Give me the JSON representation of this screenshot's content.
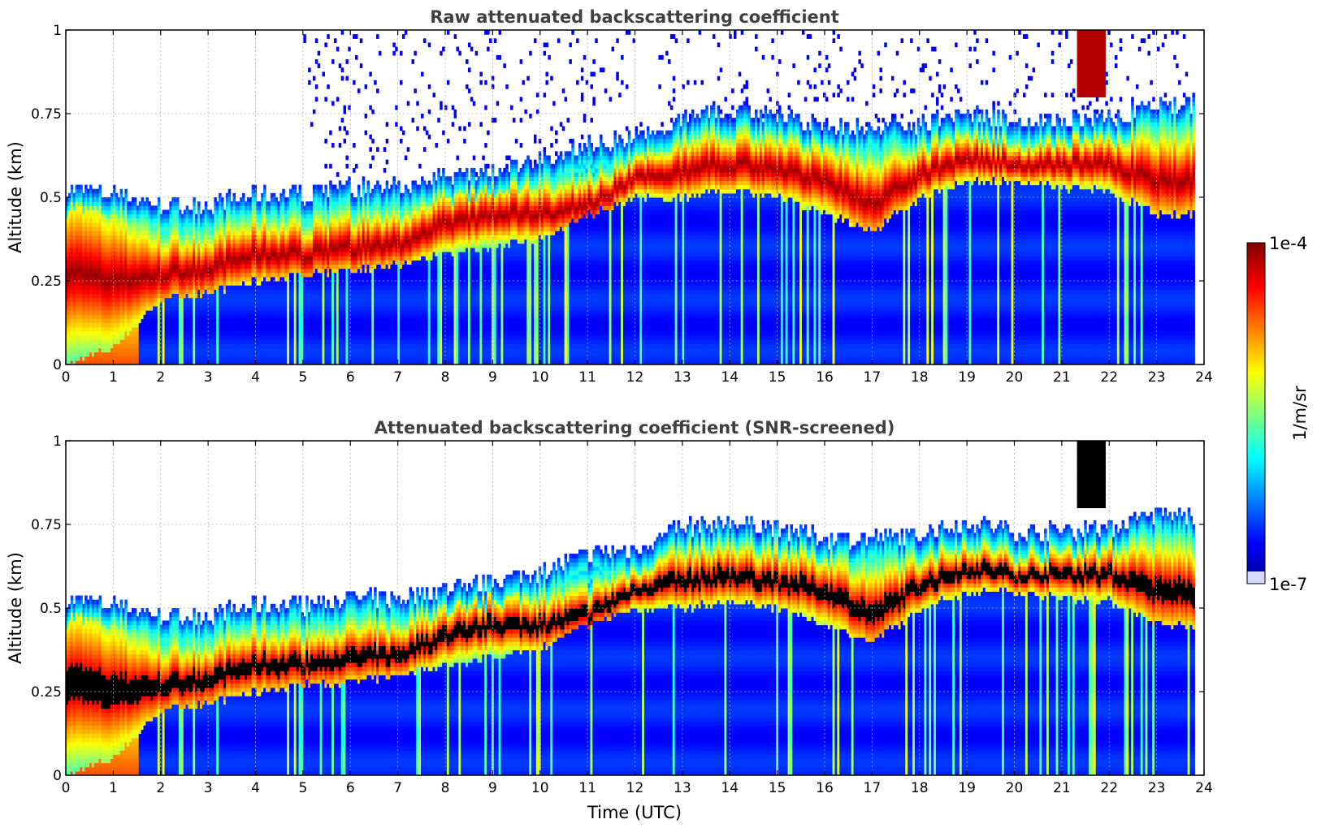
{
  "colors": {
    "background": "#ffffff",
    "colormap": "jet",
    "screened_saturation": "#000000",
    "grid": "#b0b0b0"
  },
  "colorbar": {
    "max_label": "1e-4",
    "min_label": "1e-7",
    "unit_label": "1/m/sr",
    "min_value": 1e-07,
    "max_value": 0.0001,
    "scale": "log"
  },
  "chart_data": [
    {
      "type": "heatmap",
      "title": "Raw attenuated backscattering coefficient",
      "xlabel": "",
      "ylabel": "Altitude (km)",
      "xlim": [
        0,
        24
      ],
      "ylim": [
        0,
        1
      ],
      "x_ticks": [
        "0",
        "1",
        "2",
        "3",
        "4",
        "5",
        "6",
        "7",
        "8",
        "9",
        "10",
        "11",
        "12",
        "13",
        "14",
        "15",
        "16",
        "17",
        "18",
        "19",
        "20",
        "21",
        "22",
        "23",
        "24"
      ],
      "y_ticks": [
        "0",
        "0.25",
        "0.5",
        "0.75",
        "1"
      ],
      "grid": true,
      "colorscale": "log",
      "data_end_time": 23.8,
      "layer_top_km": [
        0.47,
        0.45,
        0.42,
        0.42,
        0.45,
        0.45,
        0.47,
        0.47,
        0.5,
        0.52,
        0.55,
        0.6,
        0.62,
        0.68,
        0.7,
        0.68,
        0.65,
        0.65,
        0.66,
        0.7,
        0.67,
        0.67,
        0.68,
        0.72,
        0.72
      ],
      "layer_peak_km": [
        0.28,
        0.25,
        0.27,
        0.29,
        0.33,
        0.33,
        0.35,
        0.36,
        0.42,
        0.45,
        0.45,
        0.48,
        0.56,
        0.58,
        0.6,
        0.58,
        0.55,
        0.48,
        0.57,
        0.62,
        0.6,
        0.6,
        0.6,
        0.55,
        0.55
      ],
      "layer_bottom_km": [
        0.0,
        0.05,
        0.2,
        0.22,
        0.25,
        0.27,
        0.28,
        0.3,
        0.33,
        0.35,
        0.38,
        0.45,
        0.5,
        0.5,
        0.52,
        0.5,
        0.45,
        0.4,
        0.5,
        0.55,
        0.55,
        0.53,
        0.52,
        0.45,
        0.45
      ],
      "upper_cloud": {
        "time_start": 21.3,
        "time_end": 21.9,
        "altitude_bottom_km": 0.8,
        "altitude_top_km": 1.0
      }
    },
    {
      "type": "heatmap",
      "title": "Attenuated backscattering coefficient (SNR-screened)",
      "xlabel": "Time (UTC)",
      "ylabel": "Altitude (km)",
      "xlim": [
        0,
        24
      ],
      "ylim": [
        0,
        1
      ],
      "x_ticks": [
        "0",
        "1",
        "2",
        "3",
        "4",
        "5",
        "6",
        "7",
        "8",
        "9",
        "10",
        "11",
        "12",
        "13",
        "14",
        "15",
        "16",
        "17",
        "18",
        "19",
        "20",
        "21",
        "22",
        "23",
        "24"
      ],
      "y_ticks": [
        "0",
        "0.25",
        "0.5",
        "0.75",
        "1"
      ],
      "grid": true,
      "colorscale": "log",
      "screening": "signal above colorbar maximum shown in black; low SNR removed"
    }
  ]
}
